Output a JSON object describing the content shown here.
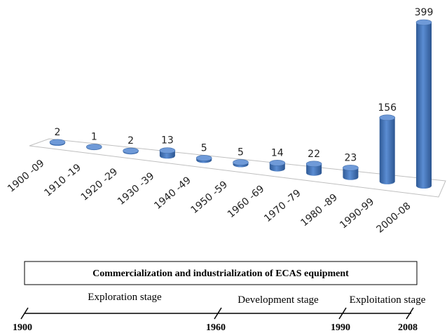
{
  "chart_data": {
    "type": "bar",
    "categories": [
      "1900 -09",
      "1910 -19",
      "1920 -29",
      "1930 -39",
      "1940 -49",
      "1950 -59",
      "1960 -69",
      "1970 -79",
      "1980 -89",
      "1990-99",
      "2000-08"
    ],
    "values": [
      2,
      1,
      2,
      13,
      5,
      5,
      14,
      22,
      23,
      156,
      399
    ],
    "color": "#4f81bd"
  },
  "timeline": {
    "title": "Commercialization and industrialization of ECAS equipment",
    "stages": [
      "Exploration stage",
      "Development stage",
      "Exploitation stage"
    ],
    "years": [
      "1900",
      "1960",
      "1990",
      "2008"
    ]
  }
}
